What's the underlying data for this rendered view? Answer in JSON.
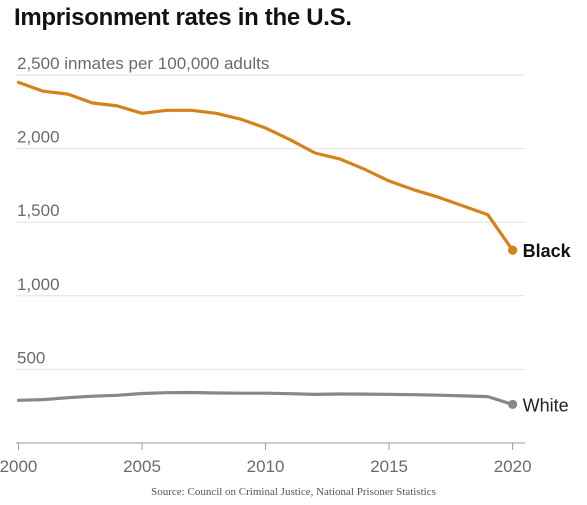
{
  "chart_data": {
    "type": "line",
    "title": "Imprisonment rates in the U.S.",
    "subtitle": "",
    "xlabel": "",
    "ylabel": "inmates per 100,000 adults",
    "x": [
      2000,
      2001,
      2002,
      2003,
      2004,
      2005,
      2006,
      2007,
      2008,
      2009,
      2010,
      2011,
      2012,
      2013,
      2014,
      2015,
      2016,
      2017,
      2018,
      2019,
      2020
    ],
    "xlim": [
      1999.9,
      2020.5
    ],
    "ylim": [
      0,
      2500
    ],
    "x_ticks": [
      {
        "value": 2000,
        "label": "2000"
      },
      {
        "value": 2005,
        "label": "2005"
      },
      {
        "value": 2010,
        "label": "2010"
      },
      {
        "value": 2015,
        "label": "2015"
      },
      {
        "value": 2020,
        "label": "2020"
      }
    ],
    "y_ticks": [
      {
        "value": 2500,
        "label": "2,500 inmates per 100,000 adults"
      },
      {
        "value": 2000,
        "label": "2,000"
      },
      {
        "value": 1500,
        "label": "1,500"
      },
      {
        "value": 1000,
        "label": "1,000"
      },
      {
        "value": 500,
        "label": "500"
      }
    ],
    "grid": true,
    "series": [
      {
        "name": "Black",
        "color": "#d4831b",
        "label_bold": true,
        "values": [
          2450,
          2390,
          2370,
          2310,
          2290,
          2240,
          2260,
          2260,
          2240,
          2200,
          2140,
          2060,
          1970,
          1930,
          1860,
          1780,
          1720,
          1670,
          1610,
          1550,
          1310
        ]
      },
      {
        "name": "White",
        "color": "#888888",
        "label_bold": false,
        "values": [
          290,
          295,
          308,
          318,
          324,
          336,
          342,
          343,
          340,
          338,
          338,
          335,
          330,
          333,
          332,
          330,
          328,
          325,
          320,
          315,
          262
        ]
      }
    ],
    "source": "Source: Council on Criminal Justice, National Prisoner Statistics"
  }
}
